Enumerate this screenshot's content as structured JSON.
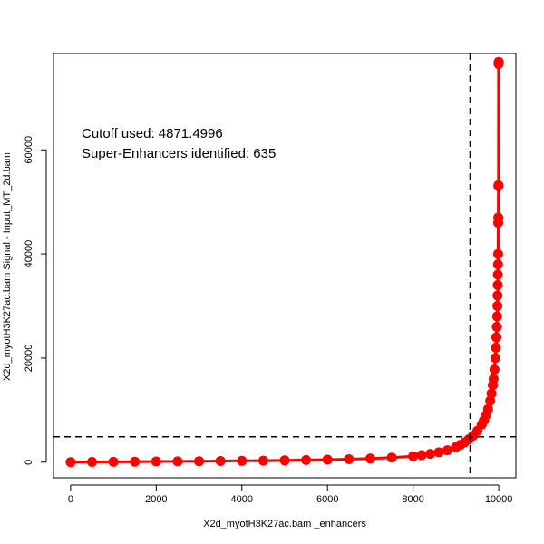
{
  "chart_data": {
    "type": "scatter",
    "title": "",
    "xlabel": "X2d_myotH3K27ac.bam _enhancers",
    "ylabel": "X2d_myotH3K27ac.bam  Signal - Input_MT_2d.bam",
    "xlim": [
      -400,
      10400
    ],
    "ylim": [
      -3000,
      78500
    ],
    "x_ticks": [
      0,
      2000,
      4000,
      6000,
      8000,
      10000
    ],
    "y_ticks": [
      0,
      20000,
      40000,
      60000
    ],
    "x_tick_labels": [
      "0",
      "2000",
      "4000",
      "6000",
      "8000",
      "10000"
    ],
    "y_tick_labels": [
      "0",
      "20000",
      "40000",
      "60000"
    ],
    "grid": false,
    "legend": "none",
    "marker_color": "#ff0000",
    "cutoff_value": 4871.4996,
    "cutoff_rank": 9330,
    "super_enhancer_count": 635,
    "annotations": [
      "Cutoff used:  4871.4996",
      "Super-Enhancers identified:  635"
    ],
    "series": [
      {
        "x": [
          0,
          500,
          1000,
          1500,
          2000,
          2500,
          3000,
          3500,
          4000,
          4500,
          5000,
          5500,
          6000,
          6500,
          7000,
          7500,
          8000,
          8200,
          8400,
          8600,
          8800,
          9000,
          9100,
          9200,
          9300,
          9400,
          9500,
          9600,
          9650,
          9700,
          9750,
          9800,
          9830,
          9860,
          9880,
          9900,
          9920,
          9935,
          9945,
          9955,
          9962,
          9968,
          9972,
          9976,
          9979,
          9982,
          9985,
          9988,
          9990,
          9992,
          9994,
          9996,
          9997,
          9998,
          9999
        ],
        "values": [
          10,
          40,
          70,
          100,
          130,
          160,
          190,
          220,
          260,
          300,
          350,
          410,
          480,
          570,
          700,
          880,
          1150,
          1350,
          1600,
          1900,
          2300,
          2900,
          3300,
          3800,
          4400,
          5100,
          6000,
          7200,
          8000,
          9000,
          10200,
          11800,
          13200,
          14800,
          16000,
          17800,
          20000,
          22000,
          24000,
          26000,
          28000,
          30000,
          32000,
          34000,
          36000,
          38000,
          40000,
          46000,
          47000,
          53000,
          53200,
          76500,
          76700,
          76800,
          76900
        ]
      }
    ]
  }
}
